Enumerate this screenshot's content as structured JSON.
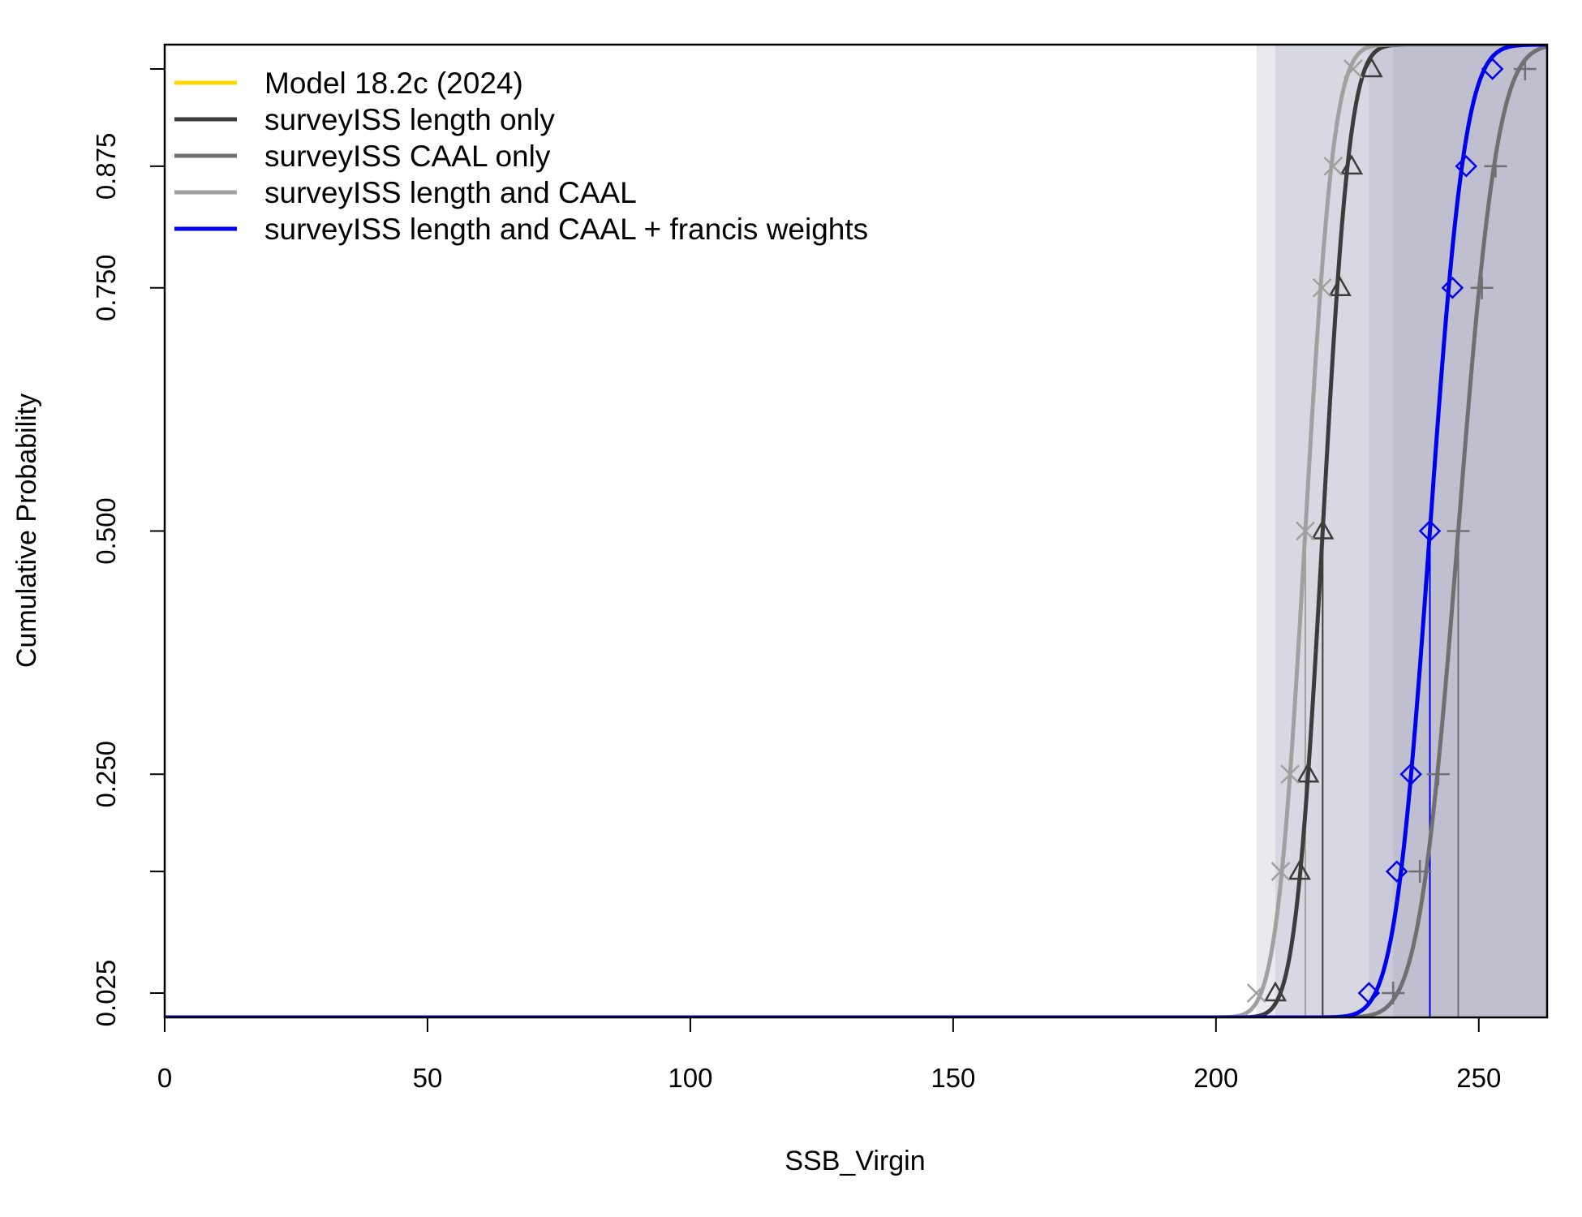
{
  "chart_data": {
    "type": "line",
    "title": "",
    "xlabel": "SSB_Virgin",
    "ylabel": "Cumulative Probability",
    "xlim": [
      0,
      263
    ],
    "ylim": [
      0,
      1
    ],
    "x_ticks": [
      "0",
      "50",
      "100",
      "150",
      "200",
      "250"
    ],
    "x_tick_values": [
      0,
      50,
      100,
      150,
      200,
      250
    ],
    "y_ticks": [
      "0.025",
      "0.250",
      "0.500",
      "0.750",
      "0.875"
    ],
    "y_tick_values": [
      0.025,
      0.25,
      0.5,
      0.75,
      0.875
    ],
    "y_extra_ticks": [
      0.15,
      0.975
    ],
    "grid": false,
    "legend_position": "top-left",
    "band_color": "#9a9ab8",
    "series": [
      {
        "name": "Model 18.2c (2024)",
        "color": "#ffd700",
        "marker": "none",
        "median": null,
        "sd": null,
        "points": []
      },
      {
        "name": "surveyISS length only",
        "color": "#3c3c3c",
        "marker": "triangle",
        "median": 220.3,
        "sd": 4.1,
        "points": [
          {
            "x": 211.3,
            "y": 0.025
          },
          {
            "x": 215.9,
            "y": 0.15
          },
          {
            "x": 217.5,
            "y": 0.25
          },
          {
            "x": 220.3,
            "y": 0.5
          },
          {
            "x": 223.6,
            "y": 0.75
          },
          {
            "x": 225.8,
            "y": 0.875
          },
          {
            "x": 229.6,
            "y": 0.975
          }
        ]
      },
      {
        "name": "surveyISS CAAL only",
        "color": "#707070",
        "marker": "plus",
        "median": 246.1,
        "sd": 5.9,
        "points": [
          {
            "x": 233.7,
            "y": 0.025
          },
          {
            "x": 238.8,
            "y": 0.15
          },
          {
            "x": 242.3,
            "y": 0.25
          },
          {
            "x": 246.1,
            "y": 0.5
          },
          {
            "x": 250.6,
            "y": 0.75
          },
          {
            "x": 253.2,
            "y": 0.875
          },
          {
            "x": 258.8,
            "y": 0.975
          }
        ]
      },
      {
        "name": "surveyISS length and CAAL",
        "color": "#a0a0a0",
        "marker": "x",
        "median": 217.0,
        "sd": 4.3,
        "points": [
          {
            "x": 207.7,
            "y": 0.025
          },
          {
            "x": 212.3,
            "y": 0.15
          },
          {
            "x": 214.1,
            "y": 0.25
          },
          {
            "x": 217.0,
            "y": 0.5
          },
          {
            "x": 220.2,
            "y": 0.75
          },
          {
            "x": 222.3,
            "y": 0.875
          },
          {
            "x": 226.1,
            "y": 0.975
          }
        ]
      },
      {
        "name": "surveyISS length and CAAL + francis weights",
        "color": "#0000ee",
        "marker": "diamond",
        "median": 240.7,
        "sd": 5.3,
        "points": [
          {
            "x": 229.1,
            "y": 0.025
          },
          {
            "x": 234.4,
            "y": 0.15
          },
          {
            "x": 237.1,
            "y": 0.25
          },
          {
            "x": 240.7,
            "y": 0.5
          },
          {
            "x": 245.0,
            "y": 0.75
          },
          {
            "x": 247.6,
            "y": 0.875
          },
          {
            "x": 252.6,
            "y": 0.975
          }
        ]
      }
    ]
  }
}
